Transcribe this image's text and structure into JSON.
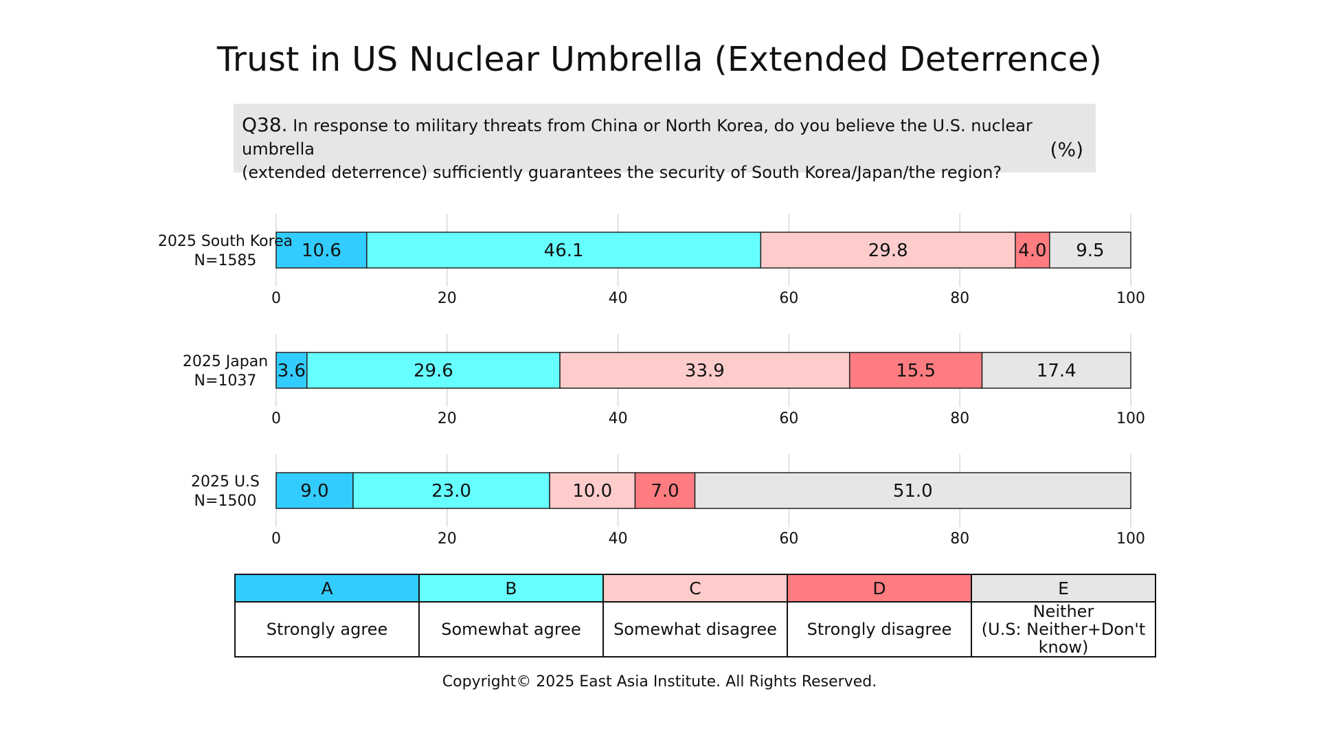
{
  "title": "Trust in US Nuclear Umbrella (Extended Deterrence)",
  "question": {
    "number": "Q38.",
    "text_line1": "In response to military threats from China or North Korea, do you believe the U.S. nuclear umbrella",
    "text_line2": "(extended deterrence) sufficiently guarantees the security of South Korea/Japan/the region?",
    "unit": "(%)"
  },
  "colors": {
    "A": "#33ccff",
    "B": "#66ffff",
    "C": "#ffcccc",
    "D": "#ff7c80",
    "E": "#e6e6e6"
  },
  "chart_data": {
    "type": "bar",
    "orientation": "horizontal",
    "stacked": true,
    "xlim": [
      0,
      100
    ],
    "ticks": [
      "0",
      "20",
      "40",
      "60",
      "80",
      "100"
    ],
    "grid": true,
    "categories": [
      "A",
      "B",
      "C",
      "D",
      "E"
    ],
    "bars": [
      {
        "label_line1": "2025 South Korea",
        "label_line2": "N=1585",
        "values": [
          10.6,
          46.1,
          29.8,
          4.0,
          9.5
        ],
        "labels": [
          "10.6",
          "46.1",
          "29.8",
          "4.0",
          "9.5"
        ]
      },
      {
        "label_line1": "2025 Japan",
        "label_line2": "N=1037",
        "values": [
          3.6,
          29.6,
          33.9,
          15.5,
          17.4
        ],
        "labels": [
          "3.6",
          "29.6",
          "33.9",
          "15.5",
          "17.4"
        ]
      },
      {
        "label_line1": "2025 U.S",
        "label_line2": "N=1500",
        "values": [
          9.0,
          23.0,
          10.0,
          7.0,
          51.0
        ],
        "labels": [
          "9.0",
          "23.0",
          "10.0",
          "7.0",
          "51.0"
        ]
      }
    ]
  },
  "legend": {
    "headers": [
      "A",
      "B",
      "C",
      "D",
      "E"
    ],
    "descriptions": [
      "Strongly agree",
      "Somewhat agree",
      "Somewhat disagree",
      "Strongly disagree"
    ],
    "neither": [
      "Neither",
      "(U.S: Neither+Don't",
      "know)"
    ]
  },
  "copyright": "Copyright© 2025 East Asia Institute. All Rights Reserved."
}
